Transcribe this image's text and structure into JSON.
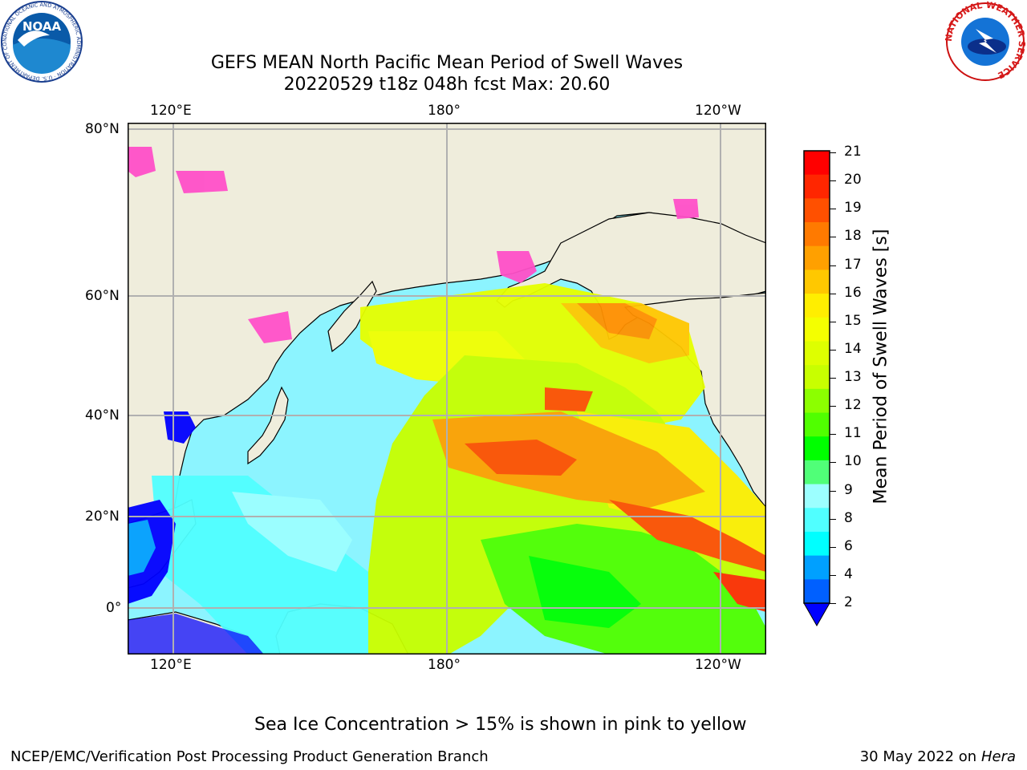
{
  "title_line1": "GEFS MEAN North Pacific Mean Period of Swell Waves",
  "title_line2": "20220529 t18z 048h fcst   Max: 20.60",
  "lon_ticks": [
    "120°E",
    "180°",
    "120°W"
  ],
  "lat_ticks": [
    "80°N",
    "60°N",
    "40°N",
    "20°N",
    "0°"
  ],
  "colorbar": {
    "label": "Mean Period of Swell Waves [s]",
    "ticks": [
      "21",
      "20",
      "19",
      "18",
      "17",
      "16",
      "15",
      "14",
      "13",
      "12",
      "11",
      "10",
      "9",
      "8",
      "6",
      "4",
      "2"
    ],
    "colors": [
      "#ff0000",
      "#ff2600",
      "#ff5000",
      "#ff7a00",
      "#ffa000",
      "#ffc800",
      "#ffee00",
      "#f4ff00",
      "#deff00",
      "#c8ff00",
      "#8cff00",
      "#50ff00",
      "#00ff00",
      "#50ff78",
      "#9cffff",
      "#50ffff",
      "#00ffff",
      "#00a0ff",
      "#0060ff"
    ],
    "extend_color": "#0000ff"
  },
  "ice_note": "Sea Ice Concentration > 15% is shown in pink to yellow",
  "footer_left": "NCEP/EMC/Verification Post Processing Product Generation Branch",
  "footer_right_date": "30 May 2022 on",
  "footer_right_machine": "Hera",
  "logos": {
    "noaa": {
      "text": "NOAA",
      "ring_text": "NATIONAL OCEANIC AND ATMOSPHERIC ADMINISTRATION · U.S. DEPARTMENT OF COMMERCE"
    },
    "nws": {
      "ring_text": "NATIONAL WEATHER SERVICE"
    }
  }
}
